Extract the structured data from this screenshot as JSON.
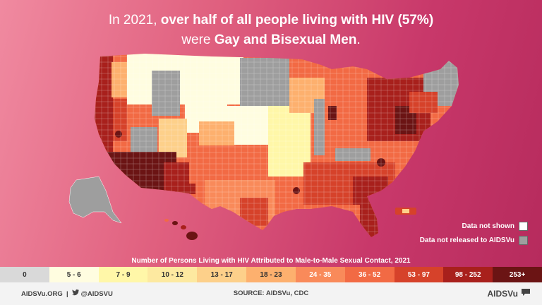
{
  "headline": {
    "line1_pre": "In 2021,",
    "line1_bold": "over half of all people living with HIV (57%)",
    "line2_pre": "were",
    "line2_bold": "Gay and Bisexual Men",
    "line2_post": "."
  },
  "map_legend": {
    "not_shown": "Data not shown",
    "not_released": "Data not released to AIDSVu"
  },
  "caption": "Number of Persons Living with HIV Attributed to Male-to-Male Sexual Contact, 2021",
  "bins": [
    {
      "label": "0",
      "color": "#d9d9d9",
      "text_color": "#333333"
    },
    {
      "label": "5 - 6",
      "color": "#fffde0",
      "text_color": "#333333"
    },
    {
      "label": "7 - 9",
      "color": "#fff7a8",
      "text_color": "#333333"
    },
    {
      "label": "10 - 12",
      "color": "#fde9a0",
      "text_color": "#333333"
    },
    {
      "label": "13 - 17",
      "color": "#fdd08a",
      "text_color": "#333333"
    },
    {
      "label": "18 - 23",
      "color": "#fdb06e",
      "text_color": "#333333"
    },
    {
      "label": "24 - 35",
      "color": "#f98a5a",
      "text_color": "#ffffff"
    },
    {
      "label": "36 - 52",
      "color": "#f26a44",
      "text_color": "#ffffff"
    },
    {
      "label": "53 - 97",
      "color": "#d6422a",
      "text_color": "#ffffff"
    },
    {
      "label": "98 - 252",
      "color": "#a8201c",
      "text_color": "#ffffff"
    },
    {
      "label": "253+",
      "color": "#6b1414",
      "text_color": "#ffffff"
    }
  ],
  "footer": {
    "website": "AIDSVu.ORG",
    "separator": "|",
    "handle": "@AIDSVU",
    "source": "SOURCE: AIDSVu, CDC",
    "brand": "AIDSVu"
  },
  "colors": {
    "background_start": "#f08aa0",
    "background_end": "#b52a5c",
    "not_shown": "#ffffff",
    "not_released": "#9e9e9e",
    "twitter_icon": "#ffffff"
  }
}
